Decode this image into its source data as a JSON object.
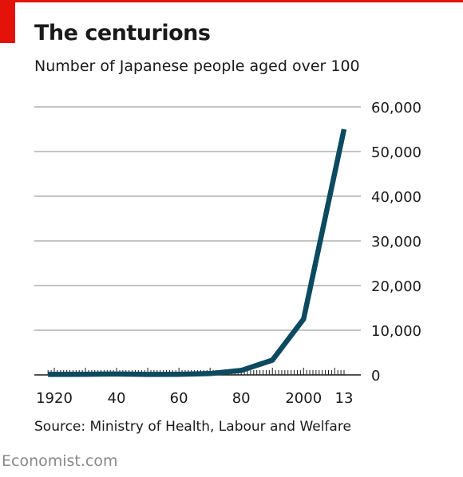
{
  "header": {
    "title": "The centurions",
    "subtitle": "Number of Japanese people aged over 100"
  },
  "footer": {
    "source": "Source: Ministry of Health, Labour and Welfare",
    "brand": "Economist.com"
  },
  "colors": {
    "accent": "#e3120b",
    "line": "#0c4a60",
    "grid": "#c4c4c4"
  },
  "chart_data": {
    "type": "line",
    "title": "The centurions",
    "subtitle": "Number of Japanese people aged over 100",
    "xlabel": "",
    "ylabel": "",
    "xlim": [
      1918,
      2016
    ],
    "ylim": [
      0,
      60000
    ],
    "grid": true,
    "y_axis_side": "right",
    "x_ticks": [
      {
        "value": 1920,
        "label": "1920"
      },
      {
        "value": 1940,
        "label": "40"
      },
      {
        "value": 1960,
        "label": "60"
      },
      {
        "value": 1980,
        "label": "80"
      },
      {
        "value": 2000,
        "label": "2000"
      },
      {
        "value": 2013,
        "label": "13"
      }
    ],
    "y_ticks": [
      {
        "value": 0,
        "label": "0"
      },
      {
        "value": 10000,
        "label": "10,000"
      },
      {
        "value": 20000,
        "label": "20,000"
      },
      {
        "value": 30000,
        "label": "30,000"
      },
      {
        "value": 40000,
        "label": "40,000"
      },
      {
        "value": 50000,
        "label": "50,000"
      },
      {
        "value": 60000,
        "label": "60,000"
      }
    ],
    "series": [
      {
        "x": [
          1918,
          1930,
          1940,
          1950,
          1960,
          1970,
          1980,
          1990,
          2000,
          2013
        ],
        "values": [
          100,
          150,
          200,
          100,
          150,
          300,
          1000,
          3300,
          12500,
          55000
        ]
      }
    ]
  }
}
